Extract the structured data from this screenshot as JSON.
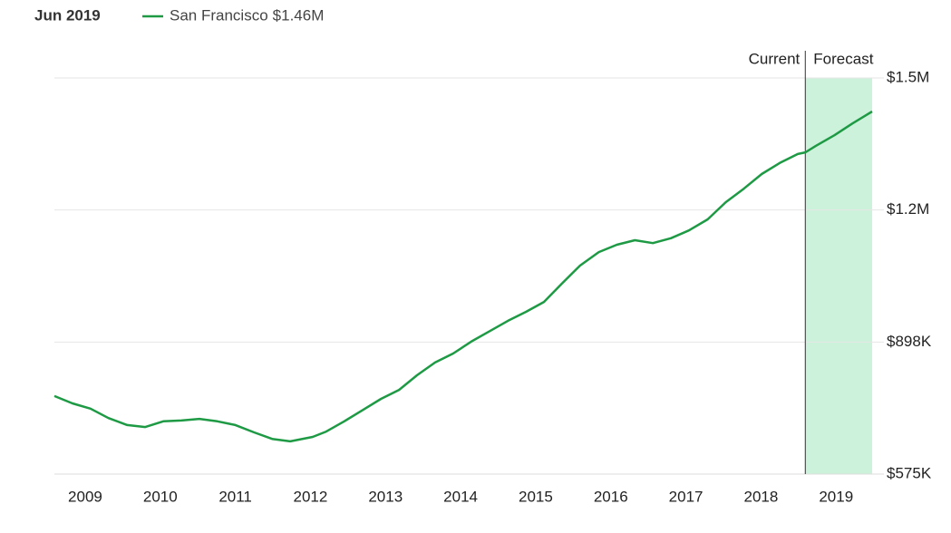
{
  "chart_data": {
    "type": "line",
    "hover": {
      "date": "Jun 2019",
      "label": "$1.46M"
    },
    "x": [
      2008.59,
      2008.83,
      2009.07,
      2009.31,
      2009.56,
      2009.8,
      2010.04,
      2010.28,
      2010.52,
      2010.76,
      2011.0,
      2011.25,
      2011.49,
      2011.73,
      2012.03,
      2012.21,
      2012.45,
      2012.7,
      2012.94,
      2013.18,
      2013.42,
      2013.66,
      2013.9,
      2014.14,
      2014.39,
      2014.63,
      2014.87,
      2015.11,
      2015.35,
      2015.59,
      2015.84,
      2016.08,
      2016.32,
      2016.56,
      2016.8,
      2017.04,
      2017.29,
      2017.53,
      2017.77,
      2018.01,
      2018.25,
      2018.49,
      2018.59,
      2018.73,
      2018.98,
      2019.22,
      2019.48
    ],
    "series": [
      {
        "name": "San Francisco",
        "color": "#1e9a45",
        "values": [
          766000,
          748000,
          735000,
          712000,
          695000,
          690000,
          704000,
          706000,
          710000,
          704000,
          695000,
          677000,
          661000,
          655000,
          666000,
          679000,
          704000,
          732000,
          759000,
          781000,
          817000,
          848000,
          870000,
          899000,
          925000,
          950000,
          972000,
          996000,
          1041000,
          1085000,
          1118000,
          1136000,
          1147000,
          1140000,
          1152000,
          1171000,
          1198000,
          1240000,
          1273000,
          1309000,
          1336000,
          1358000,
          1362000,
          1378000,
          1404000,
          1433000,
          1462000
        ]
      }
    ],
    "xlim": [
      2008.59,
      2019.48
    ],
    "xticks": [
      2009,
      2010,
      2011,
      2012,
      2013,
      2014,
      2015,
      2016,
      2017,
      2018,
      2019
    ],
    "ylim": [
      575000,
      1544000
    ],
    "yticks": [
      {
        "value": 575000,
        "label": "$575K"
      },
      {
        "value": 898000,
        "label": "$898K"
      },
      {
        "value": 1221000,
        "label": "$1.2M"
      },
      {
        "value": 1544000,
        "label": "$1.5M"
      }
    ],
    "grid": true,
    "forecast": {
      "start": 2018.59,
      "current_label": "Current",
      "forecast_label": "Forecast",
      "color": "#cdf2dc"
    }
  }
}
